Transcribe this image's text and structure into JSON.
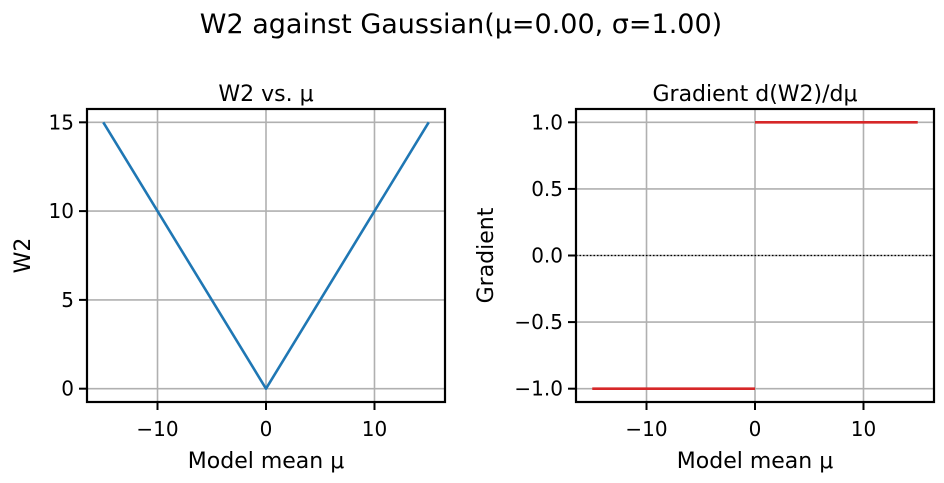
{
  "figure": {
    "suptitle": "W2 against Gaussian(μ=0.00, σ=1.00)"
  },
  "chart_data": [
    {
      "type": "line",
      "title": "W2 vs. μ",
      "xlabel": "Model mean μ",
      "ylabel": "W2",
      "xlim": [
        -16.5,
        16.5
      ],
      "ylim": [
        -0.75,
        15.75
      ],
      "xticks": [
        -10,
        0,
        10
      ],
      "xtick_labels": [
        "−10",
        "0",
        "10"
      ],
      "yticks": [
        0,
        5,
        10,
        15
      ],
      "ytick_labels": [
        "0",
        "5",
        "10",
        "15"
      ],
      "grid": true,
      "series": [
        {
          "color": "#1f77b4",
          "x": [
            -15,
            0,
            15
          ],
          "y": [
            15,
            0,
            15
          ]
        }
      ]
    },
    {
      "type": "line",
      "title": "Gradient d(W2)/dμ",
      "xlabel": "Model mean μ",
      "ylabel": "Gradient",
      "xlim": [
        -16.5,
        16.5
      ],
      "ylim": [
        -1.1,
        1.1
      ],
      "xticks": [
        -10,
        0,
        10
      ],
      "xtick_labels": [
        "−10",
        "0",
        "10"
      ],
      "yticks": [
        -1.0,
        -0.5,
        0.0,
        0.5,
        1.0
      ],
      "ytick_labels": [
        "−1.0",
        "−0.5",
        "0.0",
        "0.5",
        "1.0"
      ],
      "grid": true,
      "reference_line": {
        "y": 0,
        "style": "dotted",
        "color": "#000000"
      },
      "series": [
        {
          "color": "#d62728",
          "x": [
            -15,
            0
          ],
          "y": [
            -1,
            -1
          ]
        },
        {
          "color": "#d62728",
          "x": [
            0,
            15
          ],
          "y": [
            1,
            1
          ]
        }
      ]
    }
  ]
}
